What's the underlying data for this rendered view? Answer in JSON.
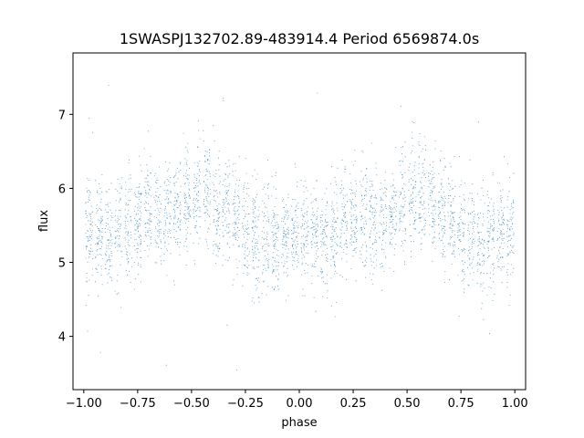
{
  "chart_data": {
    "type": "scatter",
    "title": "1SWASPJ132702.89-483914.4 Period 6569874.0s",
    "xlabel": "phase",
    "ylabel": "flux",
    "xlim": [
      -1.05,
      1.05
    ],
    "ylim": [
      3.28,
      7.83
    ],
    "xticks": [
      -1.0,
      -0.75,
      -0.5,
      -0.25,
      0.0,
      0.25,
      0.5,
      0.75,
      1.0
    ],
    "xtick_labels": [
      "−1.00",
      "−0.75",
      "−0.50",
      "−0.25",
      "0.00",
      "0.25",
      "0.50",
      "0.75",
      "1.00"
    ],
    "yticks": [
      4,
      5,
      6,
      7
    ],
    "ytick_labels": [
      "4",
      "5",
      "6",
      "7"
    ],
    "grid": false,
    "marker_color": "#1f77b4",
    "series": [
      {
        "x_range": [
          -1.0,
          1.0
        ],
        "profile_phase": [
          -1.0,
          -0.9,
          -0.8,
          -0.7,
          -0.6,
          -0.5,
          -0.45,
          -0.4,
          -0.3,
          -0.2,
          -0.1,
          0.0,
          0.1,
          0.2,
          0.3,
          0.4,
          0.5,
          0.55,
          0.6,
          0.7,
          0.8,
          0.9,
          1.0
        ],
        "profile_flux": [
          5.4,
          5.3,
          5.5,
          5.65,
          5.6,
          5.85,
          5.95,
          5.8,
          5.6,
          5.25,
          5.3,
          5.4,
          5.3,
          5.5,
          5.65,
          5.6,
          5.85,
          5.95,
          5.8,
          5.6,
          5.25,
          5.3,
          5.4
        ],
        "typical_spread": 0.35,
        "outlier_range": [
          3.5,
          7.5
        ]
      }
    ]
  }
}
